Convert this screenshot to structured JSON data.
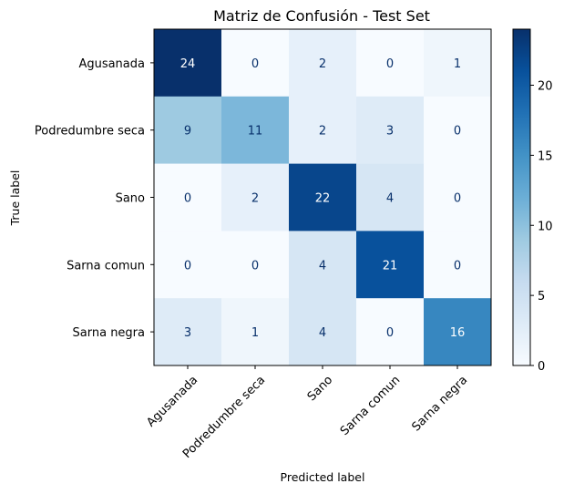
{
  "chart_data": {
    "type": "heatmap",
    "title": "Matriz de Confusión - Test Set",
    "xlabel": "Predicted label",
    "ylabel": "True label",
    "labels": [
      "Agusanada",
      "Podredumbre seca",
      "Sano",
      "Sarna comun",
      "Sarna negra"
    ],
    "matrix": [
      [
        24,
        0,
        2,
        0,
        1
      ],
      [
        9,
        11,
        2,
        3,
        0
      ],
      [
        0,
        2,
        22,
        4,
        0
      ],
      [
        0,
        0,
        4,
        21,
        0
      ],
      [
        3,
        1,
        4,
        0,
        16
      ]
    ],
    "colormap": "Blues",
    "vmin": 0,
    "vmax": 24,
    "colorbar_ticks": [
      0,
      5,
      10,
      15,
      20
    ]
  }
}
